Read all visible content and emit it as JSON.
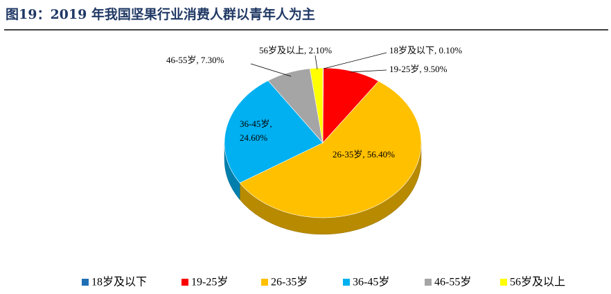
{
  "chart_data": {
    "type": "pie",
    "title": "图19：2019 年我国坚果行业消费人群以青年人为主",
    "categories": [
      "18岁及以下",
      "19-25岁",
      "26-35岁",
      "36-45岁",
      "46-55岁",
      "56岁及以上"
    ],
    "values": [
      0.1,
      9.5,
      56.4,
      24.6,
      7.3,
      2.1
    ],
    "value_labels": [
      "0.10%",
      "9.50%",
      "56.40%",
      "24.60%",
      "7.30%",
      "2.10%"
    ],
    "colors": [
      "#1f6fb5",
      "#ff0000",
      "#ffc000",
      "#00b0f0",
      "#a5a5a5",
      "#ffff00"
    ],
    "legend": "bottom"
  }
}
